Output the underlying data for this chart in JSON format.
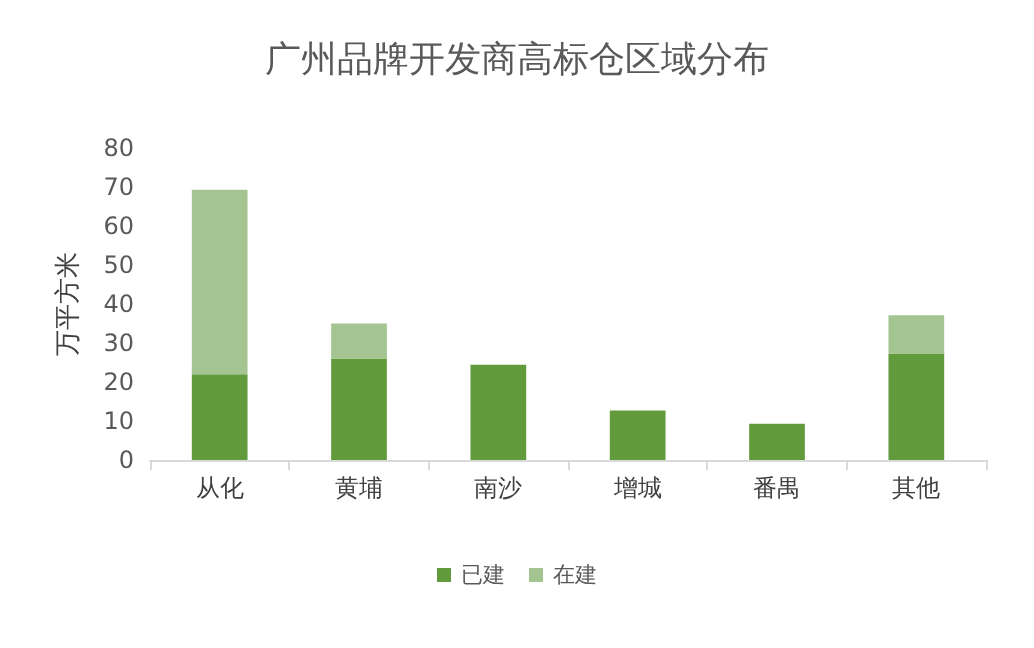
{
  "chart_data": {
    "type": "bar",
    "title": "广州品牌开发商高标仓区域分布",
    "ylabel": "万平方米",
    "categories": [
      "从化",
      "黄埔",
      "南沙",
      "增城",
      "番禺",
      "其他"
    ],
    "stacked": true,
    "series": [
      {
        "name": "已建",
        "color": "#629b3c",
        "values": [
          22,
          26,
          24.4,
          12.7,
          9.3,
          27.3
        ]
      },
      {
        "name": "在建",
        "color": "#a4c592",
        "values": [
          47.3,
          9,
          null,
          null,
          null,
          9.8
        ]
      }
    ],
    "ylim": [
      0,
      80
    ],
    "yticks": [
      0,
      10,
      20,
      30,
      40,
      50,
      60,
      70,
      80
    ],
    "grid": false,
    "legend": "bottom"
  }
}
